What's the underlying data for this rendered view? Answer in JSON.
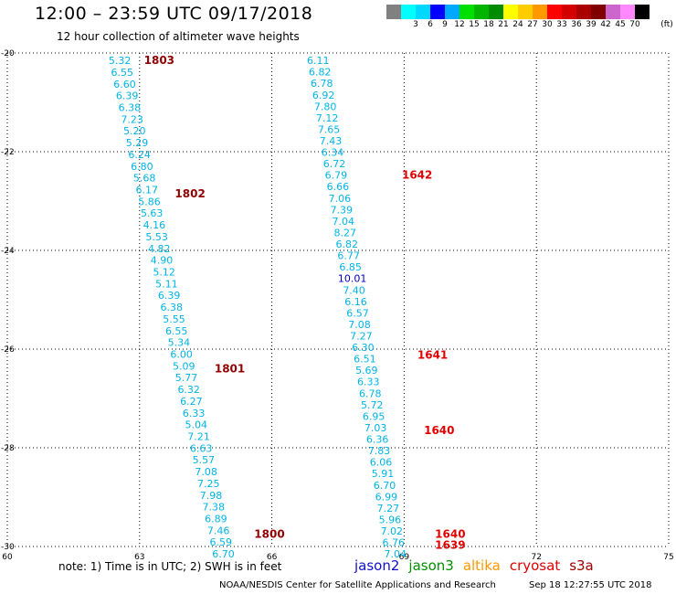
{
  "header": {
    "title": "12:00 – 23:59 UTC 09/17/2018",
    "subtitle": "12 hour collection of altimeter wave heights"
  },
  "legend": {
    "colors": [
      "#808080",
      "#00ffff",
      "#00d8ff",
      "#0000ff",
      "#00a8ff",
      "#00e000",
      "#00b400",
      "#008c00",
      "#ffff00",
      "#ffcc00",
      "#ff9900",
      "#ff0000",
      "#d40000",
      "#aa0000",
      "#800000",
      "#cc66cc",
      "#ff88ff",
      "#000000"
    ],
    "labels": [
      "3",
      "6",
      "9",
      "12",
      "15",
      "18",
      "21",
      "24",
      "27",
      "30",
      "33",
      "36",
      "39",
      "42",
      "45",
      "70"
    ],
    "unit": "(ft)"
  },
  "axes": {
    "lat_labels": [
      "-20",
      "-22",
      "-24",
      "-26",
      "-28",
      "-30"
    ],
    "lon_labels": [
      "60",
      "63",
      "66",
      "69",
      "72",
      "75"
    ]
  },
  "map_data": {
    "lon_range": [
      60,
      75
    ],
    "lat_range": [
      -30,
      -20
    ],
    "tracks": [
      {
        "values": [
          "5.32",
          "6.55",
          "6.60",
          "6.39",
          "6.38",
          "7.23",
          "5.20",
          "5.29",
          "6.24",
          "6.80",
          "5.68",
          "6.17",
          "5.86",
          "5.63",
          "4.16",
          "5.53",
          "4.82",
          "4.90",
          "5.12",
          "5.11",
          "6.39",
          "6.38",
          "5.55",
          "6.55",
          "5.34",
          "6.00",
          "5.09",
          "5.77",
          "6.32",
          "6.27",
          "6.33",
          "5.04",
          "7.21",
          "6.63",
          "5.57",
          "7.08",
          "7.25",
          "7.98",
          "7.38",
          "6.89",
          "7.46",
          "6.59",
          "6.70"
        ],
        "lon_start": 62.55,
        "lon_end": 64.9,
        "times": [
          {
            "label": "1803",
            "lon": 63.1,
            "lat": -20.15
          },
          {
            "label": "1802",
            "lon": 63.8,
            "lat": -22.85
          },
          {
            "label": "1801",
            "lon": 64.7,
            "lat": -26.4
          },
          {
            "label": "1800",
            "lon": 65.6,
            "lat": -29.75
          }
        ]
      },
      {
        "values": [
          "6.11",
          "6.82",
          "6.78",
          "6.92",
          "7.80",
          "7.12",
          "7.65",
          "7.43",
          "6.34",
          "6.72",
          "6.79",
          "6.66",
          "7.06",
          "7.39",
          "7.04",
          "8.27",
          "6.82",
          "6.77",
          "6.85",
          "10.01",
          "7.40",
          "6.16",
          "6.57",
          "7.08",
          "7.27",
          "6.30",
          "6.51",
          "5.69",
          "6.33",
          "6.78",
          "5.72",
          "6.95",
          "7.03",
          "6.36",
          "7.83",
          "6.06",
          "5.91",
          "6.70",
          "6.99",
          "7.27",
          "5.96",
          "7.02",
          "6.76",
          "7.04"
        ],
        "lon_start": 67.05,
        "lon_end": 68.8,
        "times": [
          {
            "label": "1642",
            "lon": 68.95,
            "lat": -22.47
          },
          {
            "label": "1641",
            "lon": 69.3,
            "lat": -26.12
          },
          {
            "label": "1640",
            "lon": 69.45,
            "lat": -27.65
          },
          {
            "label": "1640",
            "lon": 69.7,
            "lat": -29.75
          },
          {
            "label": "1639",
            "lon": 69.7,
            "lat": -29.97
          }
        ]
      }
    ]
  },
  "footer": {
    "note": "note: 1) Time is in UTC; 2) SWH is in feet",
    "satellites": [
      {
        "name": "jason2",
        "color": "#1010c8"
      },
      {
        "name": "jason3",
        "color": "#009000"
      },
      {
        "name": "altika",
        "color": "#ff9900"
      },
      {
        "name": "cryosat",
        "color": "#e00000"
      },
      {
        "name": "s3a",
        "color": "#a00000"
      }
    ],
    "credit": "NOAA/NESDIS Center for Satellite Applications and Research",
    "timestamp": "Sep 18 12:27:55 UTC 2018"
  }
}
